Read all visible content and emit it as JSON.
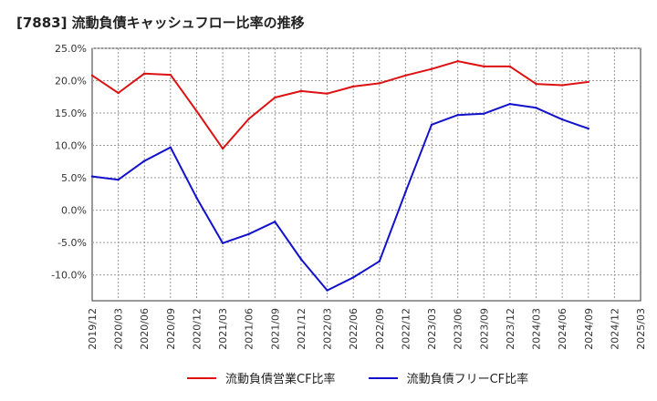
{
  "chart_data": {
    "type": "line",
    "title": "[7883]  流動負債キャッシュフロー比率の推移",
    "xlabel": "",
    "ylabel": "",
    "ylim": [
      -14,
      25
    ],
    "y_ticks": [
      "25.0%",
      "20.0%",
      "15.0%",
      "10.0%",
      "5.0%",
      "0.0%",
      "-5.0%",
      "-10.0%"
    ],
    "y_tick_values": [
      25,
      20,
      15,
      10,
      5,
      0,
      -5,
      -10
    ],
    "categories": [
      "2019/12",
      "2020/03",
      "2020/06",
      "2020/09",
      "2020/12",
      "2021/03",
      "2021/06",
      "2021/09",
      "2021/12",
      "2022/03",
      "2022/06",
      "2022/09",
      "2022/12",
      "2023/03",
      "2023/06",
      "2023/09",
      "2023/12",
      "2024/03",
      "2024/06",
      "2024/09",
      "2024/12",
      "2025/03"
    ],
    "grid": true,
    "legend_position": "bottom",
    "series": [
      {
        "name": "流動負債営業CF比率",
        "color": "#dd1111",
        "values": [
          20.8,
          18.1,
          21.1,
          20.9,
          15.3,
          9.5,
          14.1,
          17.4,
          18.4,
          18.0,
          19.1,
          19.6,
          20.8,
          21.8,
          23.0,
          22.2,
          22.2,
          19.5,
          19.3,
          19.8,
          null,
          null
        ]
      },
      {
        "name": "流動負債フリーCF比率",
        "color": "#1111cc",
        "values": [
          5.2,
          4.7,
          7.6,
          9.7,
          1.9,
          -5.1,
          -3.7,
          -1.8,
          -7.6,
          -12.4,
          -10.4,
          -7.9,
          2.8,
          13.2,
          14.7,
          14.9,
          16.4,
          15.8,
          14.0,
          12.6,
          null,
          null
        ]
      }
    ]
  }
}
